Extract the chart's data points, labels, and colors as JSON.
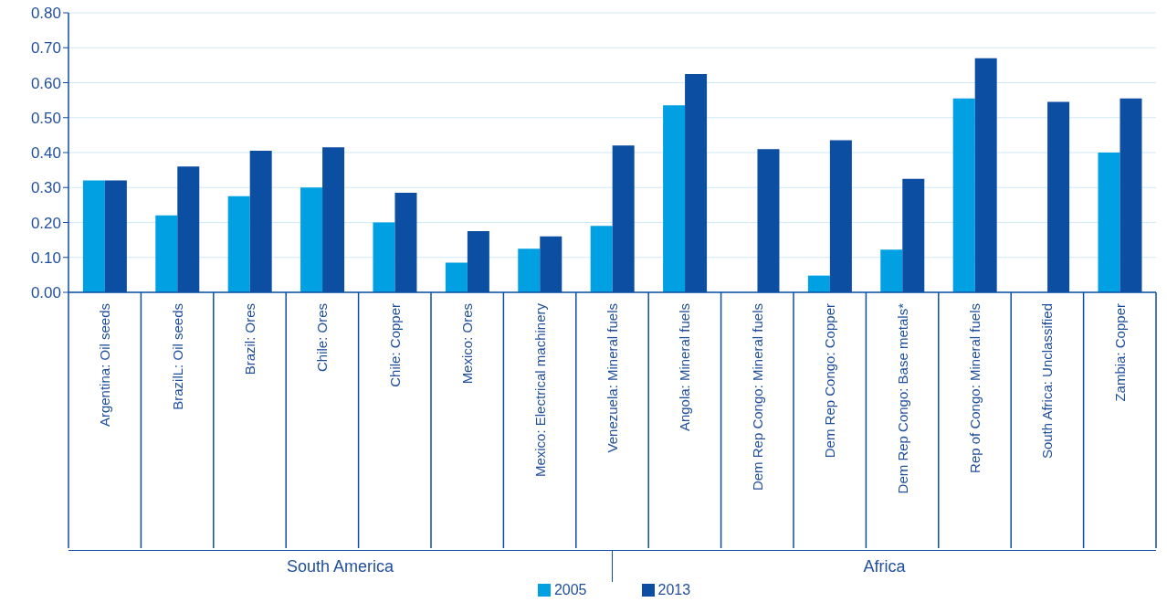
{
  "chart_data": {
    "type": "bar",
    "categories": [
      "Argentina: Oil seeds",
      "BrazilL: Oil seeds",
      "Brazil: Ores",
      "Chile: Ores",
      "Chile: Copper",
      "Mexico: Ores",
      "Mexico: Electrical machinery",
      "Venezuela: Mineral fuels",
      "Angola: Mineral fuels",
      "Dem Rep Congo: Mineral fuels",
      "Dem Rep Congo: Copper",
      "Dem Rep Congo: Base metals*",
      "Rep of Congo: Mineral fuels",
      "South Africa: Unclassified",
      "Zambia: Copper"
    ],
    "series": [
      {
        "name": "2005",
        "color": "#00a0e3",
        "values": [
          0.32,
          0.22,
          0.275,
          0.3,
          0.2,
          0.085,
          0.125,
          0.19,
          0.535,
          null,
          0.048,
          0.122,
          0.555,
          null,
          0.4
        ]
      },
      {
        "name": "2013",
        "color": "#0b4ea2",
        "values": [
          0.32,
          0.36,
          0.405,
          0.415,
          0.285,
          0.175,
          0.16,
          0.42,
          0.625,
          0.41,
          0.435,
          0.325,
          0.67,
          0.545,
          0.555
        ]
      }
    ],
    "ylim": [
      0,
      0.8
    ],
    "yticks": [
      {
        "value": 0,
        "label": "0.00"
      },
      {
        "value": 0.1,
        "label": "0.10"
      },
      {
        "value": 0.2,
        "label": "0.20"
      },
      {
        "value": 0.3,
        "label": "0.30"
      },
      {
        "value": 0.4,
        "label": "0.40"
      },
      {
        "value": 0.5,
        "label": "0.50"
      },
      {
        "value": 0.6,
        "label": "0.60"
      },
      {
        "value": 0.7,
        "label": "0.70"
      },
      {
        "value": 0.8,
        "label": "0.80"
      }
    ],
    "grid": "y",
    "legend": "bottom",
    "annotations": [
      "South America",
      "Africa"
    ]
  }
}
